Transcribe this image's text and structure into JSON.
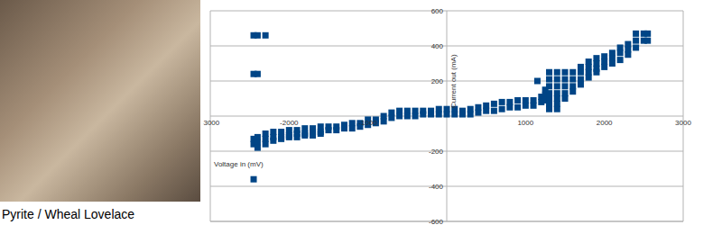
{
  "chart_data": {
    "type": "scatter",
    "x_label": "Voltage in (mV)",
    "y_label": "Current out (mA)",
    "x": [
      -2450,
      -2450,
      -2450,
      -2450,
      -2450,
      -2400,
      -2400,
      -2400,
      -2400,
      -2400,
      -2300,
      -2300,
      -2300,
      -2300,
      -2200,
      -2200,
      -2200,
      -2100,
      -2100,
      -2100,
      -2000,
      -2000,
      -2000,
      -1900,
      -1900,
      -1900,
      -1800,
      -1800,
      -1800,
      -1700,
      -1700,
      -1700,
      -1600,
      -1600,
      -1600,
      -1500,
      -1500,
      -1400,
      -1400,
      -1300,
      -1300,
      -1200,
      -1200,
      -1100,
      -1100,
      -1000,
      -1000,
      -900,
      -900,
      -800,
      -800,
      -700,
      -700,
      -600,
      -600,
      -500,
      -500,
      -400,
      -400,
      -300,
      -300,
      -200,
      -200,
      -100,
      -100,
      0,
      0,
      100,
      100,
      200,
      200,
      300,
      300,
      400,
      400,
      500,
      500,
      600,
      600,
      700,
      700,
      800,
      800,
      900,
      900,
      1000,
      1000,
      1100,
      1100,
      1150,
      1200,
      1200,
      1250,
      1250,
      1250,
      1300,
      1300,
      1300,
      1300,
      1300,
      1300,
      1300,
      1400,
      1400,
      1400,
      1400,
      1400,
      1400,
      1400,
      1500,
      1500,
      1500,
      1500,
      1500,
      1600,
      1600,
      1600,
      1600,
      1700,
      1700,
      1700,
      1700,
      1800,
      1800,
      1800,
      1800,
      1900,
      1900,
      1900,
      1900,
      2000,
      2000,
      2000,
      2100,
      2100,
      2100,
      2200,
      2200,
      2200,
      2300,
      2300,
      2300,
      2400,
      2400,
      2400,
      2500,
      2500,
      2550,
      2550
    ],
    "values": [
      460,
      240,
      -130,
      -160,
      -360,
      460,
      240,
      -120,
      -150,
      -180,
      460,
      -100,
      -130,
      -160,
      -90,
      -120,
      -140,
      -90,
      -120,
      -130,
      -80,
      -110,
      -120,
      -80,
      -100,
      -120,
      -70,
      -100,
      -110,
      -70,
      -90,
      -110,
      -60,
      -90,
      -100,
      -60,
      -80,
      -60,
      -80,
      -50,
      -70,
      -40,
      -70,
      -40,
      -60,
      -20,
      -50,
      -20,
      -40,
      0,
      -30,
      20,
      -10,
      30,
      0,
      30,
      0,
      30,
      0,
      30,
      10,
      30,
      10,
      40,
      10,
      40,
      10,
      40,
      10,
      30,
      10,
      40,
      10,
      50,
      20,
      60,
      30,
      70,
      30,
      80,
      40,
      80,
      50,
      90,
      50,
      90,
      60,
      90,
      60,
      200,
      110,
      80,
      150,
      120,
      90,
      250,
      210,
      170,
      130,
      100,
      70,
      40,
      250,
      210,
      170,
      130,
      100,
      70,
      40,
      250,
      210,
      170,
      130,
      100,
      250,
      210,
      170,
      140,
      280,
      250,
      210,
      180,
      310,
      280,
      250,
      220,
      330,
      300,
      270,
      250,
      340,
      310,
      280,
      360,
      330,
      300,
      390,
      360,
      320,
      410,
      380,
      350,
      470,
      430,
      390,
      470,
      430,
      470,
      430
    ],
    "color": "#004586",
    "marker": "square",
    "xlim": [
      -3000,
      3000
    ],
    "xticks": [
      -3000,
      -2000,
      -1000,
      1000,
      2000,
      3000
    ],
    "ylim": [
      -600,
      600
    ],
    "yticks": [
      -600,
      -400,
      -200,
      200,
      400,
      600
    ],
    "grid": true
  },
  "caption": "Pyrite / Wheal Lovelace"
}
